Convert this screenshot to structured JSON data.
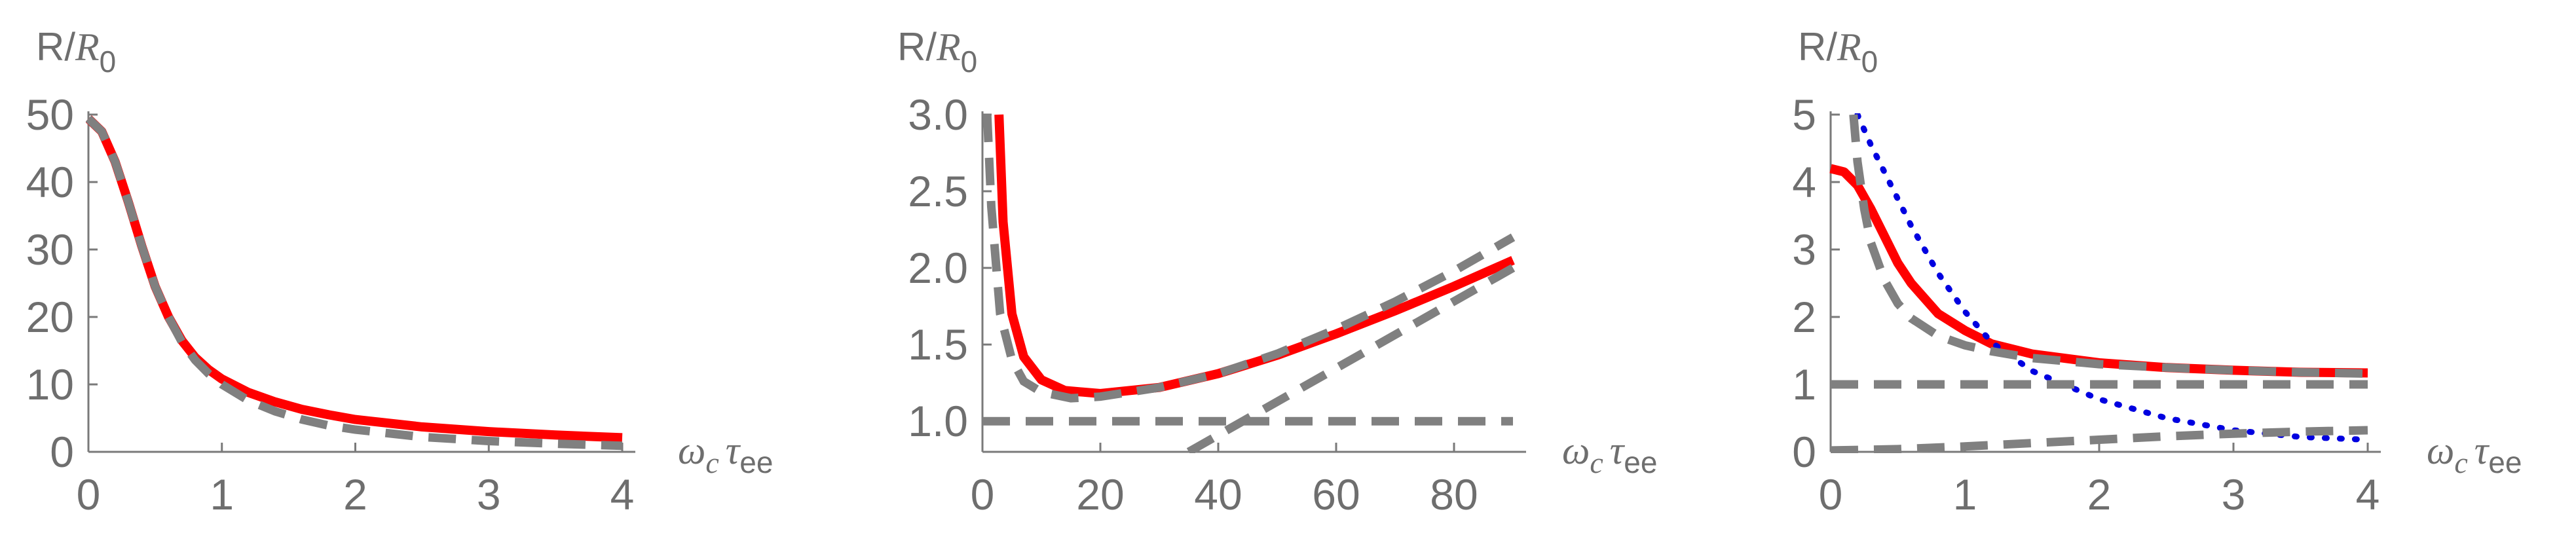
{
  "chart_data": [
    {
      "type": "line",
      "ylabel": "R/R0",
      "ylabel_parts": {
        "base": "R/",
        "var": "R",
        "sub": "0"
      },
      "xlabel_parts": {
        "w": "ω",
        "wsub": "c",
        "t": "τ",
        "tsub": "ee"
      },
      "xlim": [
        0,
        4
      ],
      "ylim": [
        0,
        50
      ],
      "xticks": [
        0,
        1,
        2,
        3,
        4
      ],
      "yticks": [
        0,
        10,
        20,
        30,
        40,
        50
      ],
      "series": [
        {
          "style": "solid-red",
          "x": [
            0,
            0.1,
            0.2,
            0.3,
            0.4,
            0.5,
            0.6,
            0.7,
            0.8,
            0.9,
            1.0,
            1.2,
            1.4,
            1.6,
            1.8,
            2.0,
            2.5,
            3.0,
            3.5,
            4.0
          ],
          "y": [
            49.4,
            47.5,
            43,
            37,
            30.5,
            24.5,
            20,
            16.5,
            14,
            12.2,
            10.8,
            8.8,
            7.4,
            6.3,
            5.5,
            4.8,
            3.7,
            3.0,
            2.5,
            2.1
          ]
        },
        {
          "style": "dashed-gray",
          "x": [
            0,
            0.1,
            0.2,
            0.3,
            0.4,
            0.5,
            0.6,
            0.7,
            0.8,
            0.9,
            1.0,
            1.2,
            1.4,
            1.6,
            1.8,
            2.0,
            2.5,
            3.0,
            3.5,
            4.0
          ],
          "y": [
            49.4,
            47.5,
            43,
            37,
            30.5,
            24.5,
            20,
            16.3,
            13.6,
            11.6,
            10.0,
            7.6,
            6.0,
            4.8,
            3.9,
            3.3,
            2.2,
            1.6,
            1.2,
            0.9
          ]
        }
      ]
    },
    {
      "type": "line",
      "ylabel": "R/R0",
      "ylabel_parts": {
        "base": "R/",
        "var": "R",
        "sub": "0"
      },
      "xlabel_parts": {
        "w": "ω",
        "wsub": "c",
        "t": "τ",
        "tsub": "ee"
      },
      "xlim": [
        0,
        90
      ],
      "ylim": [
        0.8,
        3.0
      ],
      "xticks": [
        0,
        20,
        40,
        60,
        80
      ],
      "yticks": [
        1.0,
        1.5,
        2.0,
        2.5,
        3.0
      ],
      "yticklabels": [
        "1.0",
        "1.5",
        "2.0",
        "2.5",
        "3.0"
      ],
      "series": [
        {
          "style": "solid-red",
          "x": [
            2.8,
            3.5,
            5,
            7,
            10,
            14,
            20,
            30,
            40,
            50,
            60,
            70,
            80,
            90
          ],
          "y": [
            3.0,
            2.3,
            1.7,
            1.42,
            1.27,
            1.2,
            1.18,
            1.22,
            1.31,
            1.43,
            1.57,
            1.72,
            1.88,
            2.05
          ]
        },
        {
          "style": "dashed-gray",
          "x": [
            0.8,
            1.5,
            3,
            5,
            7,
            10,
            15,
            20,
            30,
            40,
            50,
            60,
            70,
            80,
            90
          ],
          "y": [
            3.0,
            2.4,
            1.7,
            1.4,
            1.26,
            1.19,
            1.15,
            1.16,
            1.22,
            1.31,
            1.44,
            1.6,
            1.78,
            1.98,
            2.2
          ]
        },
        {
          "style": "dashed-gray",
          "x": [
            0,
            90
          ],
          "y": [
            1.0,
            1.0
          ]
        },
        {
          "style": "dashed-gray",
          "x": [
            35,
            90
          ],
          "y": [
            0.8,
            2.0
          ]
        }
      ]
    },
    {
      "type": "line",
      "ylabel": "R/R0",
      "ylabel_parts": {
        "base": "R/",
        "var": "R",
        "sub": "0"
      },
      "xlabel_parts": {
        "w": "ω",
        "wsub": "c",
        "t": "τ",
        "tsub": "ee"
      },
      "xlim": [
        0,
        4
      ],
      "ylim": [
        0,
        5
      ],
      "xticks": [
        0,
        1,
        2,
        3,
        4
      ],
      "yticks": [
        0,
        1,
        2,
        3,
        4,
        5
      ],
      "series": [
        {
          "style": "solid-red",
          "x": [
            0,
            0.1,
            0.2,
            0.3,
            0.4,
            0.5,
            0.6,
            0.8,
            1.0,
            1.2,
            1.5,
            2.0,
            2.5,
            3.0,
            3.5,
            4.0
          ],
          "y": [
            4.2,
            4.15,
            3.95,
            3.6,
            3.2,
            2.8,
            2.5,
            2.05,
            1.8,
            1.6,
            1.45,
            1.32,
            1.25,
            1.21,
            1.18,
            1.17
          ]
        },
        {
          "style": "dashed-gray",
          "x": [
            0.17,
            0.2,
            0.25,
            0.3,
            0.4,
            0.5,
            0.6,
            0.8,
            1.0,
            1.2,
            1.5,
            2.0,
            2.5,
            3.0,
            3.5,
            4.0
          ],
          "y": [
            5.0,
            4.3,
            3.6,
            3.1,
            2.55,
            2.2,
            1.98,
            1.72,
            1.58,
            1.49,
            1.39,
            1.3,
            1.25,
            1.21,
            1.18,
            1.16
          ]
        },
        {
          "style": "dashed-gray",
          "x": [
            0,
            4
          ],
          "y": [
            1.0,
            1.0
          ]
        },
        {
          "style": "dashed-gray",
          "x": [
            0,
            0.5,
            1.0,
            1.5,
            2.0,
            2.5,
            3.0,
            3.5,
            4.0
          ],
          "y": [
            0.02,
            0.04,
            0.08,
            0.13,
            0.18,
            0.23,
            0.27,
            0.3,
            0.32
          ]
        },
        {
          "style": "dotted-blue",
          "x": [
            0.2,
            0.3,
            0.4,
            0.6,
            0.8,
            1.0,
            1.2,
            1.5,
            2.0,
            2.5,
            3.0,
            3.5,
            4.0
          ],
          "y": [
            5.0,
            4.55,
            4.15,
            3.35,
            2.65,
            2.08,
            1.62,
            1.2,
            0.78,
            0.5,
            0.32,
            0.22,
            0.18
          ]
        }
      ]
    }
  ]
}
